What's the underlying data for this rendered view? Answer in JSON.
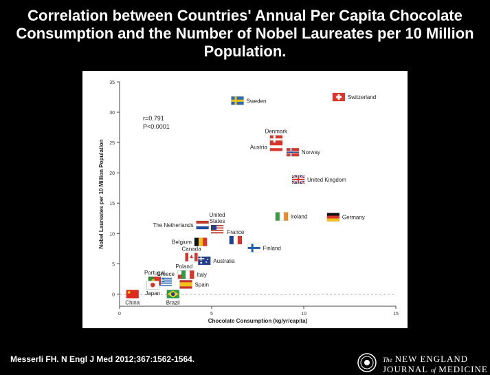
{
  "title": "Correlation between Countries' Annual Per Capita Chocolate Consumption and the Number of Nobel Laureates per 10 Million Population.",
  "citation": "Messerli FH. N Engl J Med 2012;367:1562-1564.",
  "journal": {
    "line1_prefix": "The",
    "line1": "NEW ENGLAND",
    "line2a": "JOURNAL",
    "line2_of": "of",
    "line2b": "MEDICINE"
  },
  "chart_data": {
    "type": "scatter",
    "xlabel": "Chocolate Consumption (kg/yr/capita)",
    "ylabel": "Nobel Laureates per 10 Million Population",
    "xlim": [
      0,
      15
    ],
    "ylim": [
      -2,
      35
    ],
    "xticks": [
      0,
      5,
      10,
      15
    ],
    "yticks": [
      0,
      5,
      10,
      15,
      20,
      25,
      30,
      35
    ],
    "annotation": [
      "r=0.791",
      "P<0.0001"
    ],
    "zero_line": "dashed",
    "points": [
      {
        "label": "Switzerland",
        "x": 11.9,
        "y": 32.5,
        "flag": "switzerland",
        "label_side": "right"
      },
      {
        "label": "Sweden",
        "x": 6.4,
        "y": 31.9,
        "flag": "sweden",
        "label_side": "right"
      },
      {
        "label": "Denmark",
        "x": 8.5,
        "y": 25.5,
        "flag": "denmark",
        "label_side": "top"
      },
      {
        "label": "Austria",
        "x": 8.5,
        "y": 24.3,
        "flag": "austria",
        "label_side": "left"
      },
      {
        "label": "Norway",
        "x": 9.4,
        "y": 23.4,
        "flag": "norway",
        "label_side": "right"
      },
      {
        "label": "United Kingdom",
        "x": 9.7,
        "y": 18.9,
        "flag": "uk",
        "label_side": "right"
      },
      {
        "label": "Ireland",
        "x": 8.8,
        "y": 12.8,
        "flag": "ireland",
        "label_side": "right"
      },
      {
        "label": "Germany",
        "x": 11.6,
        "y": 12.7,
        "flag": "germany",
        "label_side": "right"
      },
      {
        "label": "United States",
        "x": 5.3,
        "y": 10.7,
        "flag": "usa",
        "label_side": "top"
      },
      {
        "label": "The Netherlands",
        "x": 4.5,
        "y": 11.4,
        "flag": "netherlands",
        "label_side": "left"
      },
      {
        "label": "France",
        "x": 6.3,
        "y": 8.9,
        "flag": "france",
        "label_side": "top"
      },
      {
        "label": "Belgium",
        "x": 4.4,
        "y": 8.6,
        "flag": "belgium",
        "label_side": "left"
      },
      {
        "label": "Finland",
        "x": 7.3,
        "y": 7.6,
        "flag": "finland",
        "label_side": "right"
      },
      {
        "label": "Canada",
        "x": 3.9,
        "y": 6.1,
        "flag": "canada",
        "label_side": "top"
      },
      {
        "label": "Australia",
        "x": 4.6,
        "y": 5.5,
        "flag": "australia",
        "label_side": "right"
      },
      {
        "label": "Poland",
        "x": 3.5,
        "y": 3.2,
        "flag": "poland",
        "label_side": "top"
      },
      {
        "label": "Italy",
        "x": 3.7,
        "y": 3.2,
        "flag": "italy",
        "label_side": "right"
      },
      {
        "label": "Spain",
        "x": 3.6,
        "y": 1.6,
        "flag": "spain",
        "label_side": "right"
      },
      {
        "label": "Greece",
        "x": 2.5,
        "y": 2.0,
        "flag": "greece",
        "label_side": "top"
      },
      {
        "label": "Portugal",
        "x": 1.9,
        "y": 2.2,
        "flag": "portugal",
        "label_side": "top"
      },
      {
        "label": "Japan",
        "x": 1.8,
        "y": 1.5,
        "flag": "japan",
        "label_side": "bottom"
      },
      {
        "label": "China",
        "x": 0.7,
        "y": 0.0,
        "flag": "china",
        "label_side": "bottom"
      },
      {
        "label": "Brazil",
        "x": 2.9,
        "y": 0.0,
        "flag": "brazil",
        "label_side": "bottom"
      }
    ]
  }
}
